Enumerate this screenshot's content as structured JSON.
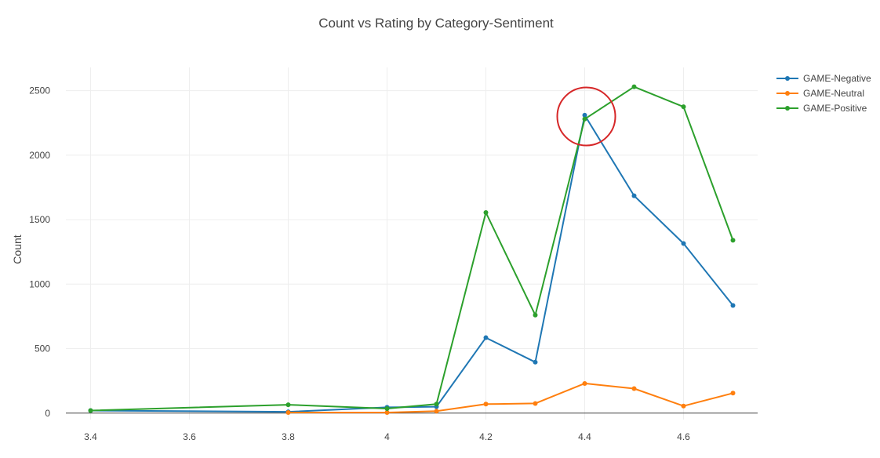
{
  "chart_data": {
    "type": "line",
    "title": "Count vs Rating by Category-Sentiment",
    "xlabel": "",
    "ylabel": "Count",
    "xlim": [
      3.35,
      4.75
    ],
    "ylim": [
      -50,
      2680
    ],
    "x_ticks": [
      3.4,
      3.6,
      3.8,
      4,
      4.2,
      4.4,
      4.6
    ],
    "x_tick_labels": [
      "3.4",
      "3.6",
      "3.8",
      "4",
      "4.2",
      "4.4",
      "4.6"
    ],
    "y_ticks": [
      0,
      500,
      1000,
      1500,
      2000,
      2500
    ],
    "y_tick_labels": [
      "0",
      "500",
      "1000",
      "1500",
      "2000",
      "2500"
    ],
    "grid": true,
    "legend_position": "top-right",
    "series": [
      {
        "name": "GAME-Negative",
        "color": "#1f77b4",
        "x": [
          3.4,
          3.8,
          4.0,
          4.1,
          4.2,
          4.3,
          4.4,
          4.5,
          4.6,
          4.7
        ],
        "values": [
          20,
          10,
          45,
          50,
          585,
          395,
          2310,
          1685,
          1315,
          835
        ]
      },
      {
        "name": "GAME-Neutral",
        "color": "#ff7f0e",
        "x": [
          3.8,
          4.0,
          4.1,
          4.2,
          4.3,
          4.4,
          4.5,
          4.6,
          4.7
        ],
        "values": [
          5,
          5,
          15,
          70,
          75,
          230,
          190,
          55,
          155
        ]
      },
      {
        "name": "GAME-Positive",
        "color": "#2ca02c",
        "x": [
          3.4,
          3.8,
          4.0,
          4.1,
          4.2,
          4.3,
          4.4,
          4.5,
          4.6,
          4.7
        ],
        "values": [
          20,
          65,
          35,
          70,
          1555,
          760,
          2280,
          2530,
          2375,
          1340
        ]
      }
    ],
    "annotations": [
      {
        "type": "circle",
        "color": "#d62728",
        "x": 4.4,
        "y": 2300
      }
    ]
  }
}
